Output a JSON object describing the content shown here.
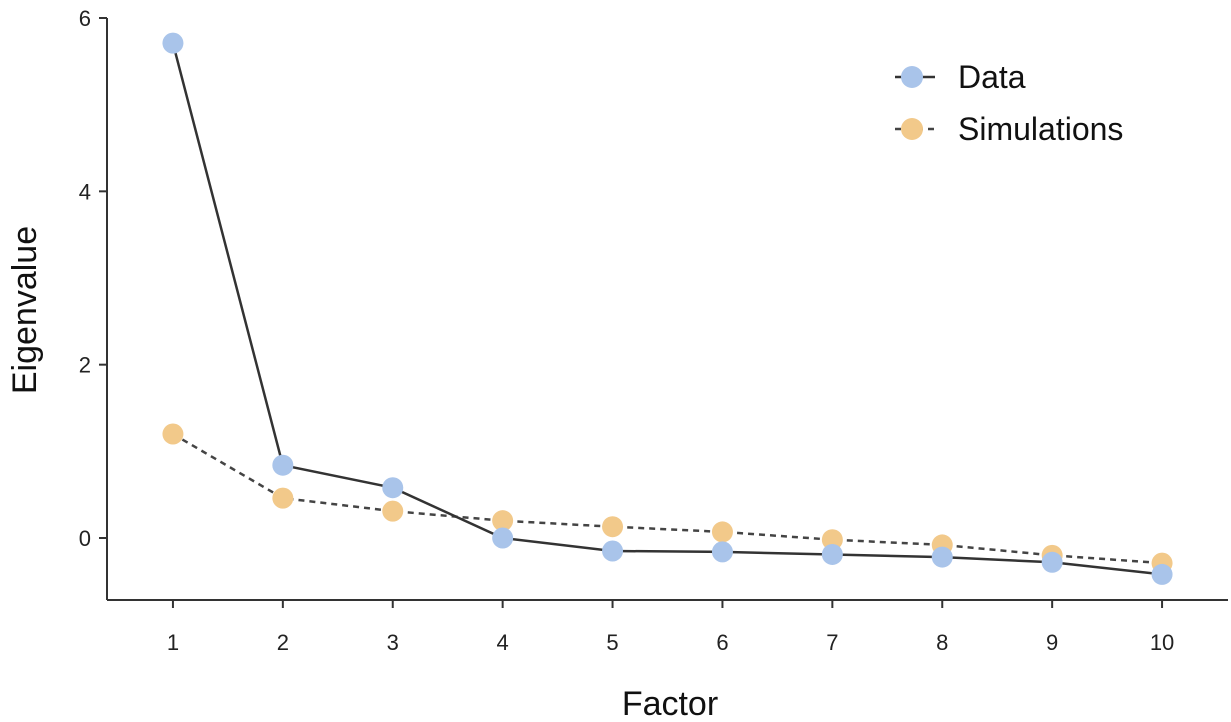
{
  "chart_data": {
    "type": "line",
    "title": "",
    "xlabel": "Factor",
    "ylabel": "Eigenvalue",
    "x": [
      1,
      2,
      3,
      4,
      5,
      6,
      7,
      8,
      9,
      10
    ],
    "xticks": [
      "1",
      "2",
      "3",
      "4",
      "5",
      "6",
      "7",
      "8",
      "9",
      "10"
    ],
    "yticks": [
      "0",
      "2",
      "4",
      "6"
    ],
    "ylim": [
      -0.7,
      6
    ],
    "xlim": [
      0.4,
      10.6
    ],
    "legend_position": "top-right",
    "series": [
      {
        "name": "Data",
        "line_style": "solid",
        "marker_color": "#a9c4ea",
        "line_color": "#333333",
        "values": [
          5.71,
          0.84,
          0.58,
          0.0,
          -0.15,
          -0.16,
          -0.19,
          -0.22,
          -0.28,
          -0.42
        ]
      },
      {
        "name": "Simulations",
        "line_style": "dashed",
        "marker_color": "#f2c98a",
        "line_color": "#444444",
        "values": [
          1.2,
          0.46,
          0.31,
          0.2,
          0.13,
          0.07,
          -0.02,
          -0.08,
          -0.2,
          -0.29
        ]
      }
    ]
  }
}
